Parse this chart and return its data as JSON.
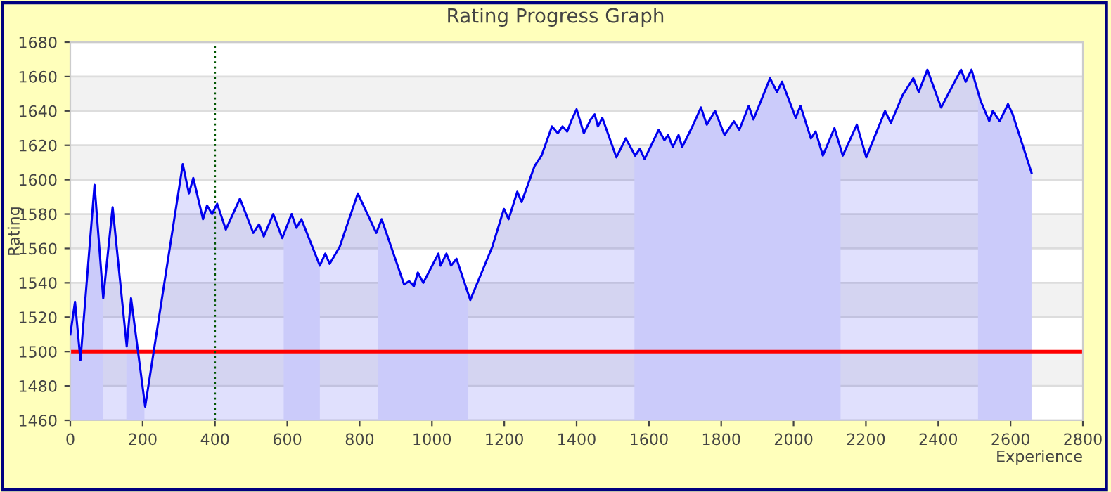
{
  "chart_data": {
    "type": "area",
    "title": "Rating Progress Graph",
    "xlabel": "Experience",
    "ylabel": "Rating",
    "series": [
      {
        "color": "#0000ee",
        "x": [
          0,
          13,
          28,
          67,
          91,
          117,
          156,
          168,
          207,
          311,
          328,
          340,
          367,
          378,
          392,
          406,
          430,
          469,
          506,
          522,
          535,
          561,
          586,
          612,
          625,
          639,
          690,
          705,
          717,
          745,
          795,
          846,
          861,
          923,
          937,
          950,
          961,
          976,
          1018,
          1024,
          1040,
          1053,
          1068,
          1106,
          1167,
          1199,
          1212,
          1236,
          1248,
          1284,
          1303,
          1332,
          1348,
          1361,
          1374,
          1385,
          1400,
          1420,
          1439,
          1450,
          1459,
          1471,
          1510,
          1536,
          1562,
          1575,
          1588,
          1627,
          1643,
          1653,
          1666,
          1682,
          1692,
          1718,
          1744,
          1760,
          1783,
          1809,
          1835,
          1850,
          1876,
          1889,
          1935,
          1954,
          1968,
          2006,
          2019,
          2048,
          2061,
          2081,
          2113,
          2136,
          2175,
          2201,
          2253,
          2269,
          2301,
          2331,
          2346,
          2370,
          2408,
          2463,
          2476,
          2492,
          2517,
          2541,
          2551,
          2570,
          2593,
          2606,
          2658
        ],
        "values": [
          1510,
          1529,
          1495,
          1597,
          1531,
          1584,
          1503,
          1531,
          1468,
          1609,
          1592,
          1601,
          1577,
          1585,
          1580,
          1586,
          1571,
          1589,
          1569,
          1574,
          1567,
          1580,
          1566,
          1580,
          1572,
          1577,
          1550,
          1557,
          1551,
          1561,
          1592,
          1569,
          1577,
          1539,
          1541,
          1538,
          1546,
          1540,
          1557,
          1550,
          1557,
          1550,
          1554,
          1530,
          1561,
          1583,
          1577,
          1593,
          1587,
          1608,
          1614,
          1631,
          1627,
          1631,
          1628,
          1634,
          1641,
          1627,
          1635,
          1638,
          1631,
          1636,
          1613,
          1624,
          1614,
          1618,
          1612,
          1629,
          1623,
          1626,
          1619,
          1626,
          1619,
          1630,
          1642,
          1632,
          1640,
          1626,
          1634,
          1629,
          1643,
          1635,
          1659,
          1651,
          1657,
          1636,
          1643,
          1624,
          1628,
          1614,
          1630,
          1614,
          1632,
          1613,
          1640,
          1633,
          1649,
          1659,
          1651,
          1664,
          1642,
          1664,
          1657,
          1664,
          1646,
          1634,
          1640,
          1634,
          1644,
          1638,
          1604
        ]
      }
    ],
    "bands": [
      {
        "axis": "x",
        "from": 0,
        "to": 90,
        "color": "#e8e8fc"
      },
      {
        "axis": "x",
        "from": 155,
        "to": 205,
        "color": "#e8e8fc"
      },
      {
        "axis": "x",
        "from": 590,
        "to": 690,
        "color": "#e8e8fc"
      },
      {
        "axis": "x",
        "from": 850,
        "to": 1100,
        "color": "#e8e8fc"
      },
      {
        "axis": "x",
        "from": 1560,
        "to": 2130,
        "color": "#e8e8fc"
      },
      {
        "axis": "x",
        "from": 2510,
        "to": 2658,
        "color": "#e8e8fc"
      }
    ],
    "ref_lines": [
      {
        "axis": "y",
        "value": 1500,
        "color": "#ff0000",
        "line_style": "solid"
      },
      {
        "axis": "x",
        "value": 400,
        "color": "#005500",
        "line_style": "dotted"
      }
    ],
    "xlim": [
      0,
      2800
    ],
    "xticks": [
      0,
      200,
      400,
      600,
      800,
      1000,
      1200,
      1400,
      1600,
      1800,
      2000,
      2200,
      2400,
      2600,
      2800
    ],
    "ylim": [
      1460,
      1680
    ],
    "yticks": [
      1460,
      1480,
      1500,
      1520,
      1540,
      1560,
      1580,
      1600,
      1620,
      1640,
      1660,
      1680
    ],
    "grid": "y",
    "legend": false,
    "marker": "none",
    "line_style": "solid"
  }
}
